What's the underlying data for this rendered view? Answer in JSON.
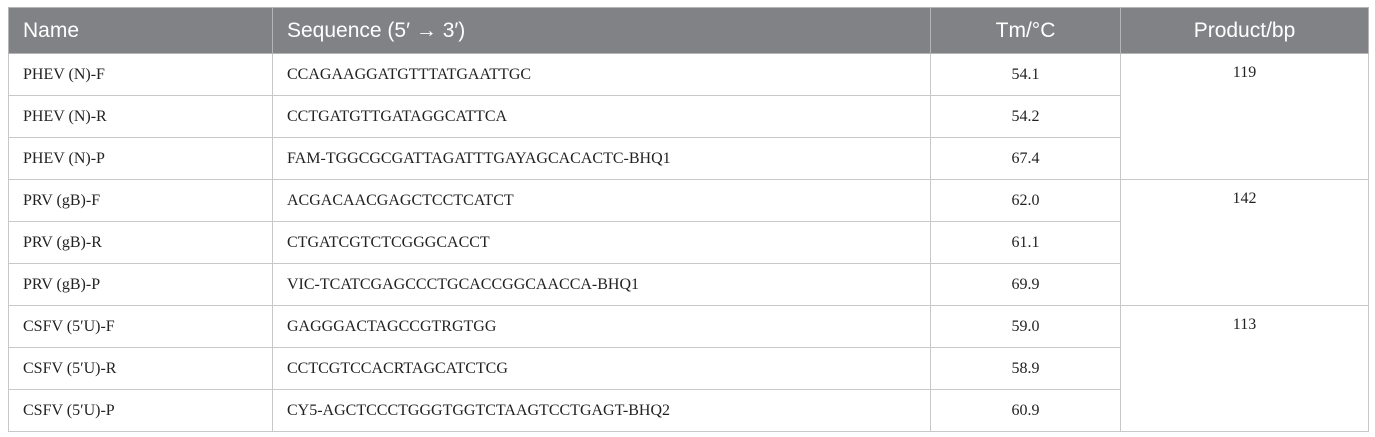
{
  "table": {
    "header": [
      "Name",
      "Sequence (5′ → 3′)",
      "Tm/°C",
      "Product/bp"
    ],
    "groups": [
      {
        "product": "119",
        "rows": [
          [
            "PHEV (N)-F",
            "CCAGAAGGATGTTTATGAATTGC",
            "54.1"
          ],
          [
            "PHEV (N)-R",
            "CCTGATGTTGATAGGCATTCA",
            "54.2"
          ],
          [
            "PHEV (N)-P",
            "FAM-TGGCGCGATTAGATTTGAYAGCACACTC-BHQ1",
            "67.4"
          ]
        ]
      },
      {
        "product": "142",
        "rows": [
          [
            "PRV (gB)-F",
            "ACGACAACGAGCTCCTCATCT",
            "62.0"
          ],
          [
            "PRV (gB)-R",
            "CTGATCGTCTCGGGCACCT",
            "61.1"
          ],
          [
            "PRV (gB)-P",
            "VIC-TCATCGAGCCCTGCACCGGCAACCA-BHQ1",
            "69.9"
          ]
        ]
      },
      {
        "product": "113",
        "rows": [
          [
            "CSFV (5′U)-F",
            "GAGGGACTAGCCGTRGTGG",
            "59.0"
          ],
          [
            "CSFV (5′U)-R",
            "CCTCGTCCACRTAGCATCTCG",
            "58.9"
          ],
          [
            "CSFV (5′U)-P",
            "CY5-AGCTCCCTGGGTGGTCTAAGTCCTGAGT-BHQ2",
            "60.9"
          ]
        ]
      }
    ]
  }
}
